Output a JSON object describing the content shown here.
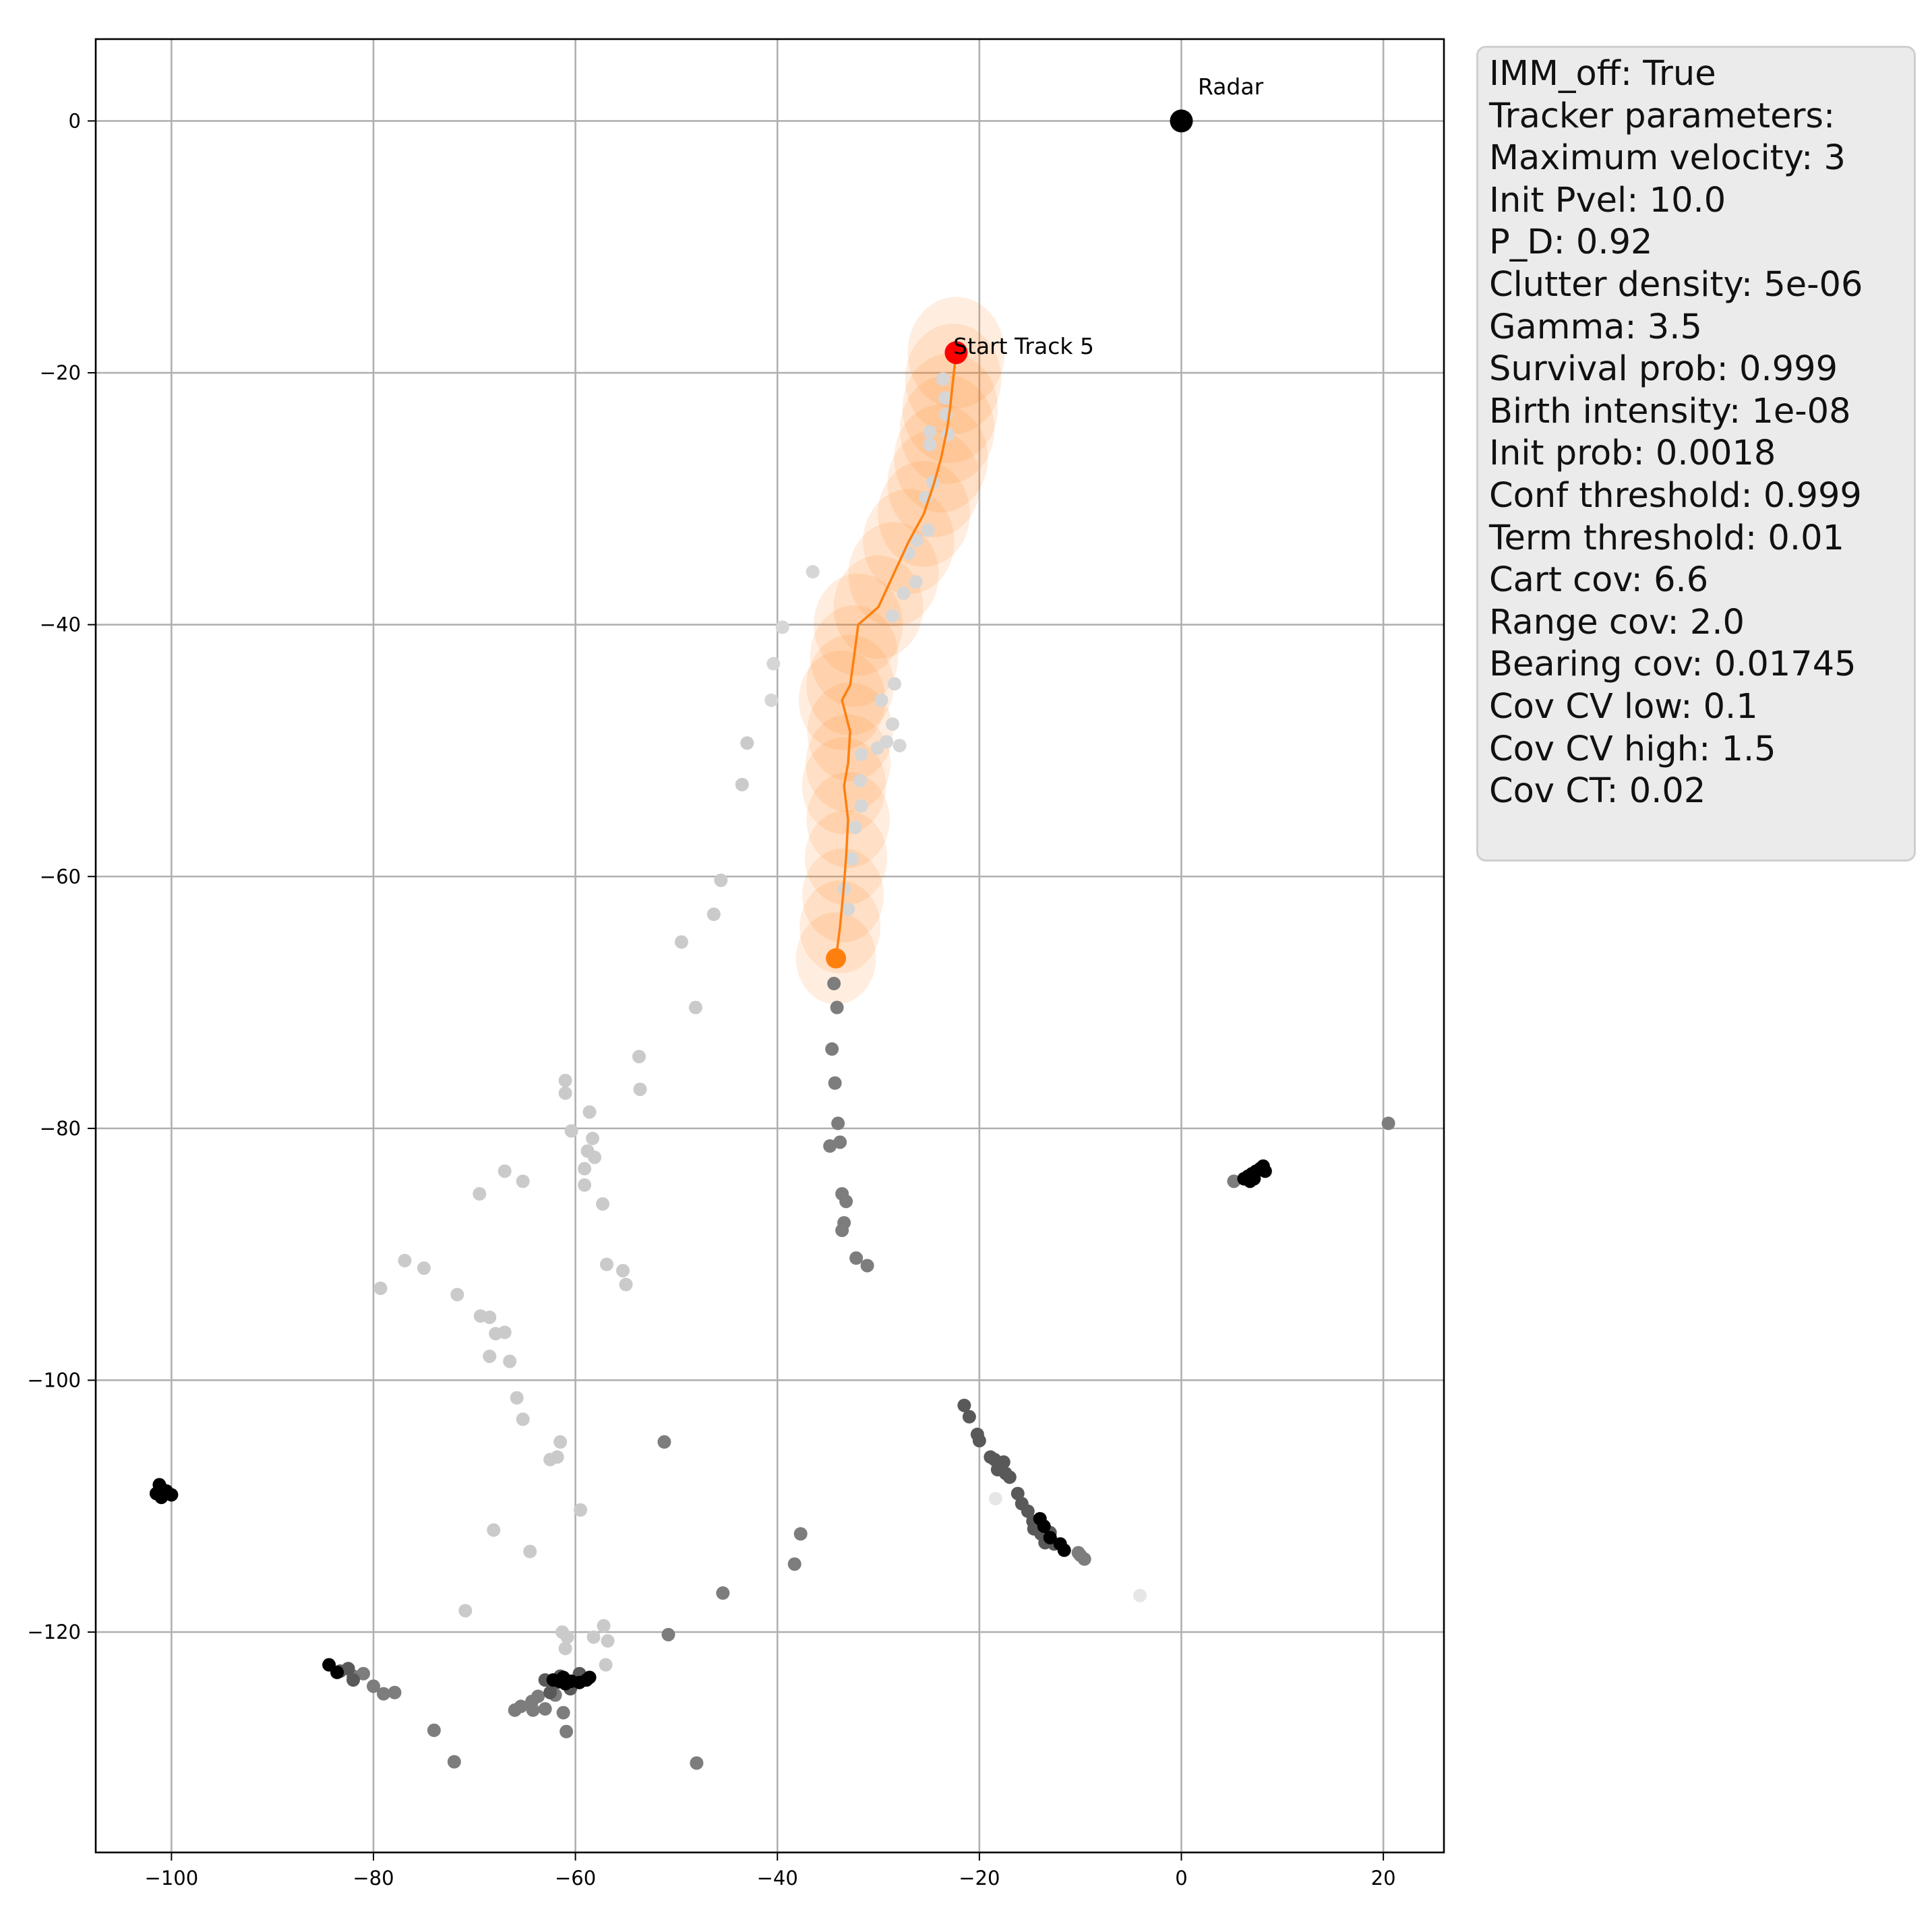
{
  "chart_data": {
    "type": "scatter",
    "title": "",
    "xlabel": "",
    "ylabel": "",
    "xlim": [
      -107.5,
      26
    ],
    "ylim": [
      -137.5,
      6.5
    ],
    "xticks": [
      -100,
      -80,
      -60,
      -40,
      -20,
      0,
      20
    ],
    "yticks": [
      0,
      -20,
      -40,
      -60,
      -80,
      -100,
      -120
    ],
    "xtick_labels": [
      "−100",
      "−80",
      "−60",
      "−40",
      "−20",
      "0",
      "20"
    ],
    "ytick_labels": [
      "0",
      "−20",
      "−40",
      "−60",
      "−80",
      "−100",
      "−120"
    ],
    "grid": true,
    "colors": {
      "track_line": "#ff7f0e",
      "track_start": "#ff0000",
      "track_end": "#ff7f0e",
      "radar": "#000000",
      "covariance_fill": "#ff7f0e"
    },
    "radar": {
      "label": "Radar",
      "x": 0,
      "y": 0
    },
    "track": {
      "label": "Start Track 5",
      "points": [
        [
          -22.3,
          -18.4
        ],
        [
          -22.6,
          -20.5
        ],
        [
          -22.9,
          -22.8
        ],
        [
          -23.2,
          -24.5
        ],
        [
          -23.8,
          -26.8
        ],
        [
          -24.5,
          -28.8
        ],
        [
          -25.5,
          -31.2
        ],
        [
          -27.0,
          -33.4
        ],
        [
          -28.5,
          -36.0
        ],
        [
          -30.0,
          -38.6
        ],
        [
          -32.0,
          -40.0
        ],
        [
          -32.4,
          -42.5
        ],
        [
          -32.8,
          -44.8
        ],
        [
          -33.6,
          -46.0
        ],
        [
          -32.8,
          -48.5
        ],
        [
          -33.0,
          -51.0
        ],
        [
          -33.4,
          -52.8
        ],
        [
          -33.0,
          -55.5
        ],
        [
          -33.2,
          -58.5
        ],
        [
          -33.5,
          -61.5
        ],
        [
          -33.8,
          -64.0
        ],
        [
          -34.2,
          -66.5
        ]
      ]
    },
    "detections": [
      {
        "shade": "#d6d6d6",
        "points": [
          [
            -23.6,
            -20.5
          ],
          [
            -23.4,
            -22.0
          ],
          [
            -23.3,
            -23.3
          ],
          [
            -23.1,
            -24.9
          ],
          [
            -24.9,
            -24.7
          ],
          [
            -24.9,
            -25.7
          ],
          [
            -24.6,
            -28.7
          ],
          [
            -25.3,
            -29.9
          ],
          [
            -25.1,
            -32.5
          ],
          [
            -26.2,
            -33.3
          ],
          [
            -27.0,
            -34.3
          ],
          [
            -26.3,
            -36.6
          ],
          [
            -27.5,
            -37.5
          ],
          [
            -28.6,
            -39.3
          ],
          [
            -36.5,
            -35.8
          ],
          [
            -39.5,
            -40.2
          ],
          [
            -40.4,
            -43.1
          ],
          [
            -40.6,
            -46.0
          ],
          [
            -28.4,
            -44.7
          ],
          [
            -29.7,
            -46.0
          ],
          [
            -28.6,
            -47.9
          ],
          [
            -29.2,
            -49.3
          ],
          [
            -30.1,
            -49.8
          ],
          [
            -27.9,
            -49.6
          ],
          [
            -31.7,
            -50.3
          ],
          [
            -31.8,
            -52.4
          ],
          [
            -31.7,
            -54.4
          ],
          [
            -32.3,
            -56.1
          ],
          [
            -32.6,
            -58.6
          ],
          [
            -33.4,
            -61.0
          ],
          [
            -33.0,
            -62.6
          ]
        ]
      },
      {
        "shade": "#cacaca",
        "points": [
          [
            -43.0,
            -49.4
          ],
          [
            -43.5,
            -52.7
          ],
          [
            -45.6,
            -60.3
          ],
          [
            -46.3,
            -63.0
          ],
          [
            -49.5,
            -65.2
          ],
          [
            -48.1,
            -70.4
          ],
          [
            -53.7,
            -74.3
          ],
          [
            -53.6,
            -76.9
          ],
          [
            -61.0,
            -76.2
          ],
          [
            -61.0,
            -77.2
          ],
          [
            -60.4,
            -80.2
          ],
          [
            -58.6,
            -78.7
          ],
          [
            -58.8,
            -81.8
          ],
          [
            -59.1,
            -83.2
          ],
          [
            -58.3,
            -80.8
          ],
          [
            -58.1,
            -82.3
          ],
          [
            -59.1,
            -84.5
          ],
          [
            -57.3,
            -86.0
          ],
          [
            -56.9,
            -90.8
          ],
          [
            -55.3,
            -91.3
          ],
          [
            -55.0,
            -92.4
          ],
          [
            -65.2,
            -84.2
          ],
          [
            -67.0,
            -83.4
          ],
          [
            -69.5,
            -85.2
          ],
          [
            -76.9,
            -90.5
          ],
          [
            -75.0,
            -91.1
          ],
          [
            -79.3,
            -92.7
          ],
          [
            -71.7,
            -93.2
          ],
          [
            -69.4,
            -94.9
          ],
          [
            -68.5,
            -95.0
          ],
          [
            -67.9,
            -96.3
          ],
          [
            -67.0,
            -96.2
          ],
          [
            -68.5,
            -98.1
          ],
          [
            -66.5,
            -98.5
          ],
          [
            -65.8,
            -101.4
          ],
          [
            -65.2,
            -103.1
          ],
          [
            -62.5,
            -106.3
          ],
          [
            -61.8,
            -106.1
          ],
          [
            -61.5,
            -104.9
          ],
          [
            -59.5,
            -110.3
          ],
          [
            -68.1,
            -111.9
          ],
          [
            -64.5,
            -113.6
          ],
          [
            -70.9,
            -118.3
          ],
          [
            -61.3,
            -120.0
          ],
          [
            -60.8,
            -120.4
          ],
          [
            -61.0,
            -121.3
          ],
          [
            -58.2,
            -120.4
          ],
          [
            -57.2,
            -119.5
          ],
          [
            -56.8,
            -120.7
          ],
          [
            -57.0,
            -122.6
          ]
        ]
      },
      {
        "shade": "#e6e6e6",
        "points": [
          [
            -18.4,
            -109.4
          ],
          [
            -4.1,
            -117.1
          ]
        ]
      },
      {
        "shade": "#7d7d7d",
        "points": [
          [
            -34.4,
            -68.5
          ],
          [
            -34.1,
            -70.4
          ],
          [
            -34.6,
            -73.7
          ],
          [
            -34.3,
            -76.4
          ],
          [
            -34.0,
            -79.6
          ],
          [
            -34.8,
            -81.4
          ],
          [
            -33.8,
            -81.1
          ],
          [
            -33.6,
            -85.2
          ],
          [
            -33.2,
            -85.8
          ],
          [
            -33.4,
            -87.5
          ],
          [
            -33.6,
            -88.1
          ],
          [
            -32.2,
            -90.3
          ],
          [
            -31.1,
            -90.9
          ],
          [
            -51.2,
            -104.9
          ],
          [
            -37.7,
            -112.2
          ],
          [
            -38.3,
            -114.6
          ],
          [
            -45.4,
            -116.9
          ],
          [
            -50.8,
            -120.2
          ],
          [
            -48.0,
            -130.4
          ],
          [
            -74.0,
            -127.8
          ],
          [
            -72.0,
            -130.3
          ],
          [
            -62.0,
            -125.0
          ],
          [
            -61.2,
            -126.4
          ],
          [
            -60.9,
            -127.9
          ],
          [
            -63.7,
            -125.1
          ],
          [
            -64.3,
            -125.5
          ],
          [
            -65.4,
            -125.9
          ],
          [
            -64.2,
            -126.2
          ],
          [
            -63.0,
            -126.1
          ],
          [
            -62.2,
            -124.2
          ],
          [
            -66.0,
            -126.2
          ],
          [
            -10.0,
            -113.9
          ],
          [
            -9.6,
            -114.2
          ],
          [
            -10.2,
            -113.7
          ],
          [
            5.2,
            -84.2
          ],
          [
            20.5,
            -79.6
          ],
          [
            -77.9,
            -124.8
          ],
          [
            -79.0,
            -124.9
          ],
          [
            -80.0,
            -124.3
          ],
          [
            -81.0,
            -123.3
          ],
          [
            -82.0,
            -123.5
          ]
        ]
      },
      {
        "shade": "#595959",
        "points": [
          [
            -21.5,
            -102.0
          ],
          [
            -21.0,
            -102.9
          ],
          [
            -20.2,
            -104.3
          ],
          [
            -20.0,
            -104.8
          ],
          [
            -18.9,
            -106.1
          ],
          [
            -18.5,
            -106.3
          ],
          [
            -18.2,
            -107.1
          ],
          [
            -17.6,
            -106.5
          ],
          [
            -17.4,
            -107.4
          ],
          [
            -17.0,
            -107.7
          ],
          [
            -16.2,
            -109.0
          ],
          [
            -15.8,
            -109.8
          ],
          [
            -15.2,
            -110.4
          ],
          [
            -14.7,
            -111.2
          ],
          [
            -14.6,
            -111.8
          ],
          [
            -14.1,
            -111.5
          ],
          [
            -13.9,
            -112.2
          ],
          [
            -13.5,
            -112.9
          ],
          [
            -13.0,
            -112.1
          ],
          [
            -12.6,
            -113.0
          ],
          [
            -61.8,
            -124.0
          ],
          [
            -61.5,
            -123.5
          ],
          [
            -60.5,
            -124.5
          ],
          [
            -59.9,
            -124.0
          ],
          [
            -59.6,
            -123.3
          ],
          [
            -63.0,
            -123.8
          ],
          [
            -62.5,
            -124.8
          ],
          [
            -83.3,
            -123.1
          ],
          [
            -82.5,
            -122.9
          ],
          [
            -82.0,
            -123.8
          ]
        ]
      },
      {
        "shade": "#000000",
        "points": [
          [
            -101.0,
            -108.6
          ],
          [
            -101.5,
            -109.0
          ],
          [
            -101.0,
            -109.3
          ],
          [
            -100.5,
            -108.8
          ],
          [
            -100.0,
            -109.1
          ],
          [
            -101.2,
            -108.3
          ],
          [
            -12.0,
            -113.0
          ],
          [
            -11.6,
            -113.5
          ],
          [
            -14.0,
            -111.0
          ],
          [
            -13.6,
            -111.6
          ],
          [
            -13.0,
            -112.5
          ],
          [
            6.2,
            -84.0
          ],
          [
            6.6,
            -83.8
          ],
          [
            7.0,
            -83.6
          ],
          [
            7.4,
            -83.4
          ],
          [
            7.8,
            -83.2
          ],
          [
            8.1,
            -83.0
          ],
          [
            8.3,
            -83.4
          ],
          [
            6.8,
            -84.2
          ],
          [
            7.2,
            -84.0
          ],
          [
            -61.6,
            -123.9
          ],
          [
            -61.0,
            -124.1
          ],
          [
            -60.4,
            -123.9
          ],
          [
            -59.6,
            -124.0
          ],
          [
            -58.9,
            -123.8
          ],
          [
            -58.6,
            -123.6
          ],
          [
            -62.2,
            -123.8
          ],
          [
            -84.4,
            -122.6
          ],
          [
            -83.6,
            -123.2
          ],
          [
            -61.2,
            -123.6
          ]
        ]
      }
    ]
  },
  "params_box": {
    "lines": [
      "IMM_off: True",
      "Tracker parameters:",
      "Maximum velocity: 3",
      "Init Pvel: 10.0",
      "P_D: 0.92",
      "Clutter density: 5e-06",
      "Gamma: 3.5",
      "Survival prob: 0.999",
      "Birth intensity: 1e-08",
      "Init prob: 0.0018",
      "Conf threshold: 0.999",
      "Term threshold: 0.01",
      "Cart cov: 6.6",
      "Range cov: 2.0",
      "Bearing cov: 0.01745",
      "Cov CV low: 0.1",
      "Cov CV high: 1.5",
      "Cov CT: 0.02"
    ]
  }
}
